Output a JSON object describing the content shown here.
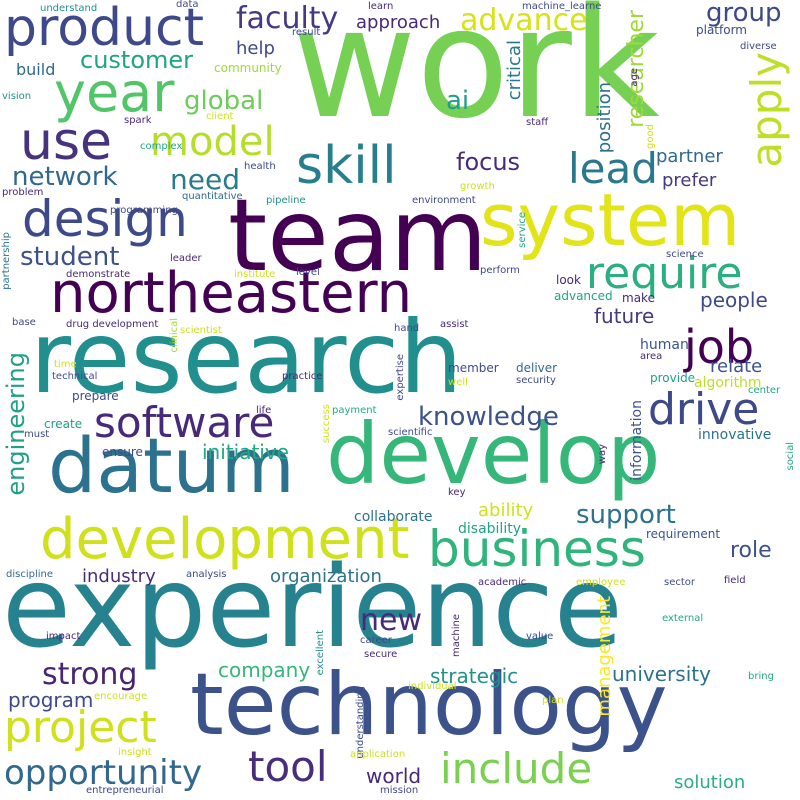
{
  "words": [
    {
      "text": "work",
      "color": "#75d054",
      "v": false
    },
    {
      "text": "experience",
      "color": "#26828e",
      "v": false
    },
    {
      "text": "research",
      "color": "#218f8d",
      "v": false
    },
    {
      "text": "team",
      "color": "#440154",
      "v": false
    },
    {
      "text": "develop",
      "color": "#35b779",
      "v": false
    },
    {
      "text": "system",
      "color": "#e2e418",
      "v": false
    },
    {
      "text": "technology",
      "color": "#3b528b",
      "v": false
    },
    {
      "text": "datum",
      "color": "#2c728e",
      "v": false
    },
    {
      "text": "northeastern",
      "color": "#440154",
      "v": false
    },
    {
      "text": "development",
      "color": "#d0e11c",
      "v": false
    },
    {
      "text": "product",
      "color": "#3e4989",
      "v": false
    },
    {
      "text": "business",
      "color": "#2fb47c",
      "v": false
    },
    {
      "text": "design",
      "color": "#3e4989",
      "v": false
    },
    {
      "text": "year",
      "color": "#52c569",
      "v": false
    },
    {
      "text": "skill",
      "color": "#277f8e",
      "v": false
    },
    {
      "text": "use",
      "color": "#46327e",
      "v": false
    },
    {
      "text": "software",
      "color": "#482878",
      "v": false
    },
    {
      "text": "include",
      "color": "#7ad151",
      "v": false
    },
    {
      "text": "require",
      "color": "#2ab07f",
      "v": false
    },
    {
      "text": "drive",
      "color": "#3e4989",
      "v": false
    },
    {
      "text": "project",
      "color": "#d0e11c",
      "v": false
    },
    {
      "text": "tool",
      "color": "#472d7b",
      "v": false
    },
    {
      "text": "opportunity",
      "color": "#31688e",
      "v": false
    },
    {
      "text": "model",
      "color": "#b5de2b",
      "v": false
    },
    {
      "text": "lead",
      "color": "#2a788e",
      "v": false
    },
    {
      "text": "job",
      "color": "#440154",
      "v": false
    },
    {
      "text": "faculty",
      "color": "#443a83",
      "v": false
    },
    {
      "text": "apply",
      "color": "#bddf26",
      "v": true
    },
    {
      "text": "knowledge",
      "color": "#3b528b",
      "v": false
    },
    {
      "text": "support",
      "color": "#2c728e",
      "v": false
    },
    {
      "text": "strong",
      "color": "#482475",
      "v": false
    },
    {
      "text": "new",
      "color": "#472a7a",
      "v": false
    },
    {
      "text": "student",
      "color": "#3b528b",
      "v": false
    },
    {
      "text": "network",
      "color": "#31688e",
      "v": false
    },
    {
      "text": "advance",
      "color": "#d8e219",
      "v": false
    },
    {
      "text": "customer",
      "color": "#20a486",
      "v": false
    },
    {
      "text": "focus",
      "color": "#472a7a",
      "v": false
    },
    {
      "text": "need",
      "color": "#287c8e",
      "v": false
    },
    {
      "text": "global",
      "color": "#6ccd5a",
      "v": false
    },
    {
      "text": "ai",
      "color": "#1f9e89",
      "v": false
    },
    {
      "text": "engineering",
      "color": "#1fa188",
      "v": true
    },
    {
      "text": "researcher",
      "color": "#a0da39",
      "v": true
    },
    {
      "text": "group",
      "color": "#3e4989",
      "v": false
    },
    {
      "text": "future",
      "color": "#443983",
      "v": false
    },
    {
      "text": "role",
      "color": "#3b528b",
      "v": false
    },
    {
      "text": "initiative",
      "color": "#22a884",
      "v": false
    },
    {
      "text": "company",
      "color": "#35b779",
      "v": false
    },
    {
      "text": "strategic",
      "color": "#21918c",
      "v": false
    },
    {
      "text": "university",
      "color": "#2c728e",
      "v": false
    },
    {
      "text": "program",
      "color": "#3e4989",
      "v": false
    },
    {
      "text": "world",
      "color": "#482878",
      "v": false
    },
    {
      "text": "solution",
      "color": "#29af7f",
      "v": false
    },
    {
      "text": "people",
      "color": "#3e4989",
      "v": false
    },
    {
      "text": "partner",
      "color": "#31688e",
      "v": false
    },
    {
      "text": "prefer",
      "color": "#453781",
      "v": false
    },
    {
      "text": "industry",
      "color": "#472d7b",
      "v": false
    },
    {
      "text": "organization",
      "color": "#2c728e",
      "v": false
    },
    {
      "text": "management",
      "color": "#fde725",
      "v": true
    },
    {
      "text": "ability",
      "color": "#d0e11c",
      "v": false
    },
    {
      "text": "relate",
      "color": "#3b528b",
      "v": false
    },
    {
      "text": "critical",
      "color": "#2a788e",
      "v": true
    },
    {
      "text": "position",
      "color": "#2d708e",
      "v": true
    },
    {
      "text": "help",
      "color": "#3e4989",
      "v": false
    },
    {
      "text": "approach",
      "color": "#482878",
      "v": false
    },
    {
      "text": "build",
      "color": "#31688e",
      "v": false
    },
    {
      "text": "innovative",
      "color": "#2c728e",
      "v": false
    },
    {
      "text": "collaborate",
      "color": "#2c728e",
      "v": false
    },
    {
      "text": "information",
      "color": "#3b528b",
      "v": true
    },
    {
      "text": "algorithm",
      "color": "#bddf26",
      "v": false
    },
    {
      "text": "human",
      "color": "#39568c",
      "v": false
    },
    {
      "text": "provide",
      "color": "#1fa188",
      "v": false
    },
    {
      "text": "disability",
      "color": "#20a486",
      "v": false
    },
    {
      "text": "requirement",
      "color": "#3b528b",
      "v": false
    },
    {
      "text": "prepare",
      "color": "#3e4989",
      "v": false
    },
    {
      "text": "create",
      "color": "#1f9e89",
      "v": false
    },
    {
      "text": "member",
      "color": "#3e4989",
      "v": false
    },
    {
      "text": "deliver",
      "color": "#31688e",
      "v": false
    },
    {
      "text": "platform",
      "color": "#3e4989",
      "v": false
    },
    {
      "text": "advanced",
      "color": "#20a486",
      "v": false
    },
    {
      "text": "make",
      "color": "#482878",
      "v": false
    },
    {
      "text": "look",
      "color": "#482878",
      "v": false
    },
    {
      "text": "ensure",
      "color": "#3e4989",
      "v": false
    },
    {
      "text": "community",
      "color": "#a0da39",
      "v": false
    },
    {
      "text": "data",
      "color": "#3e4989",
      "v": false
    },
    {
      "text": "learn",
      "color": "#482878",
      "v": false
    },
    {
      "text": "understand",
      "color": "#21918c",
      "v": false
    },
    {
      "text": "machine_learne",
      "color": "#3e4989",
      "v": false
    },
    {
      "text": "age",
      "color": "#482878",
      "v": true
    },
    {
      "text": "diverse",
      "color": "#3e4989",
      "v": false
    },
    {
      "text": "vision",
      "color": "#21918c",
      "v": false
    },
    {
      "text": "spark",
      "color": "#482878",
      "v": false
    },
    {
      "text": "result",
      "color": "#3e4989",
      "v": false
    },
    {
      "text": "client",
      "color": "#d0e11c",
      "v": false
    },
    {
      "text": "complex",
      "color": "#22a884",
      "v": false
    },
    {
      "text": "staff",
      "color": "#482878",
      "v": false
    },
    {
      "text": "good",
      "color": "#d0e11c",
      "v": true
    },
    {
      "text": "growth",
      "color": "#d0e11c",
      "v": false
    },
    {
      "text": "health",
      "color": "#3e4989",
      "v": false
    },
    {
      "text": "quantitative",
      "color": "#31688e",
      "v": false
    },
    {
      "text": "programming",
      "color": "#3e4989",
      "v": false
    },
    {
      "text": "problem",
      "color": "#482878",
      "v": false
    },
    {
      "text": "pipeline",
      "color": "#21918c",
      "v": false
    },
    {
      "text": "environment",
      "color": "#3e4989",
      "v": false
    },
    {
      "text": "partnership",
      "color": "#2c728e",
      "v": true
    },
    {
      "text": "demonstrate",
      "color": "#482878",
      "v": false
    },
    {
      "text": "leader",
      "color": "#482878",
      "v": false
    },
    {
      "text": "institute",
      "color": "#d0e11c",
      "v": false
    },
    {
      "text": "level",
      "color": "#3e4989",
      "v": false
    },
    {
      "text": "service",
      "color": "#22a884",
      "v": true
    },
    {
      "text": "perform",
      "color": "#3e4989",
      "v": false
    },
    {
      "text": "science",
      "color": "#3e4989",
      "v": false
    },
    {
      "text": "base",
      "color": "#3e4989",
      "v": false
    },
    {
      "text": "drug development",
      "color": "#482878",
      "v": false
    },
    {
      "text": "scientist",
      "color": "#d0e11c",
      "v": false
    },
    {
      "text": "clinical",
      "color": "#a0da39",
      "v": true
    },
    {
      "text": "hand",
      "color": "#3e4989",
      "v": false
    },
    {
      "text": "assist",
      "color": "#482878",
      "v": false
    },
    {
      "text": "area",
      "color": "#482878",
      "v": false
    },
    {
      "text": "time",
      "color": "#d0e11c",
      "v": false
    },
    {
      "text": "technical",
      "color": "#3e4989",
      "v": false
    },
    {
      "text": "practice",
      "color": "#482878",
      "v": false
    },
    {
      "text": "expertise",
      "color": "#3e4989",
      "v": true
    },
    {
      "text": "well",
      "color": "#d0e11c",
      "v": false
    },
    {
      "text": "security",
      "color": "#3e4989",
      "v": false
    },
    {
      "text": "center",
      "color": "#22a884",
      "v": false
    },
    {
      "text": "life",
      "color": "#482878",
      "v": false
    },
    {
      "text": "payment",
      "color": "#22a884",
      "v": false
    },
    {
      "text": "must",
      "color": "#3e4989",
      "v": false
    },
    {
      "text": "scientific",
      "color": "#3e4989",
      "v": false
    },
    {
      "text": "success",
      "color": "#d0e11c",
      "v": true
    },
    {
      "text": "way",
      "color": "#482878",
      "v": true
    },
    {
      "text": "social",
      "color": "#22a884",
      "v": true
    },
    {
      "text": "key",
      "color": "#482878",
      "v": false
    },
    {
      "text": "discipline",
      "color": "#31688e",
      "v": false
    },
    {
      "text": "analysis",
      "color": "#3e4989",
      "v": false
    },
    {
      "text": "academic",
      "color": "#482878",
      "v": false
    },
    {
      "text": "employee",
      "color": "#d0e11c",
      "v": false
    },
    {
      "text": "sector",
      "color": "#3e4989",
      "v": false
    },
    {
      "text": "field",
      "color": "#482878",
      "v": false
    },
    {
      "text": "impact",
      "color": "#482878",
      "v": false
    },
    {
      "text": "excellent",
      "color": "#21918c",
      "v": true
    },
    {
      "text": "career",
      "color": "#3e4989",
      "v": false
    },
    {
      "text": "secure",
      "color": "#482878",
      "v": false
    },
    {
      "text": "machine",
      "color": "#482878",
      "v": true
    },
    {
      "text": "value",
      "color": "#3e4989",
      "v": false
    },
    {
      "text": "external",
      "color": "#22a884",
      "v": false
    },
    {
      "text": "bring",
      "color": "#22a884",
      "v": false
    },
    {
      "text": "encourage",
      "color": "#d0e11c",
      "v": false
    },
    {
      "text": "individual",
      "color": "#d0e11c",
      "v": false
    },
    {
      "text": "plan",
      "color": "#d0e11c",
      "v": false
    },
    {
      "text": "understanding",
      "color": "#3e4989",
      "v": true
    },
    {
      "text": "insight",
      "color": "#d0e11c",
      "v": false
    },
    {
      "text": "application",
      "color": "#d0e11c",
      "v": false
    },
    {
      "text": "entrepreneurial",
      "color": "#3e4989",
      "v": false
    },
    {
      "text": "mission",
      "color": "#3e4989",
      "v": false
    }
  ]
}
